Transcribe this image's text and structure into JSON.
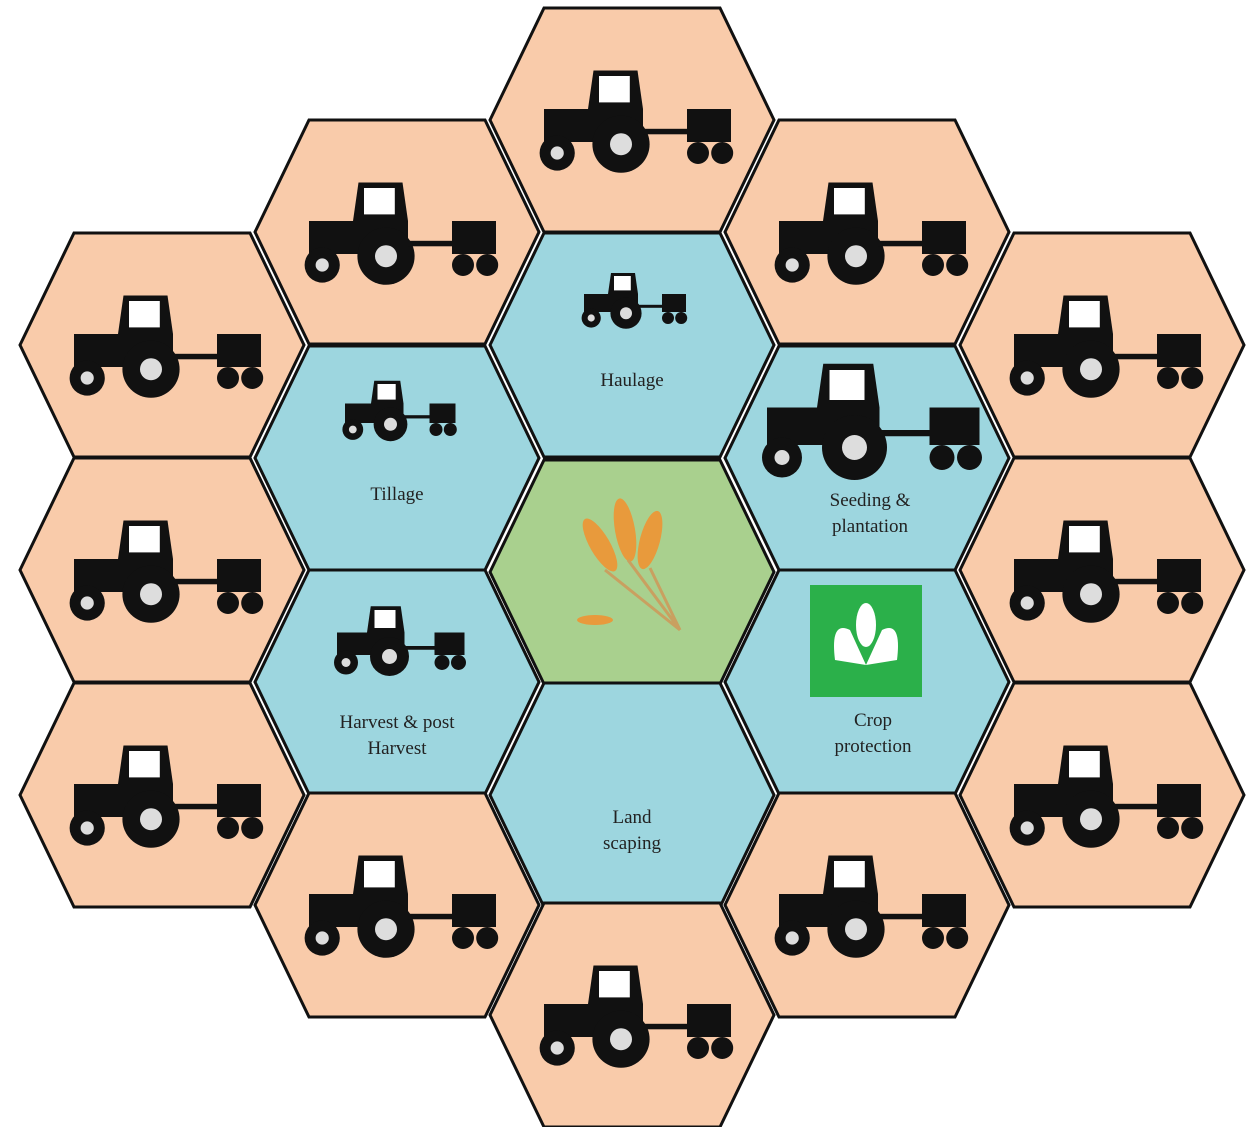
{
  "labels": [
    {
      "lines": [
        "Haulage"
      ]
    },
    {
      "lines": [
        "Tillage"
      ]
    },
    {
      "lines": [
        "Seeding &",
        "plantation"
      ]
    },
    {
      "lines": [
        "Harvest & post",
        "Harvest"
      ]
    },
    {
      "lines": [
        "Crop",
        "protection"
      ]
    },
    {
      "lines": [
        "Land",
        "scaping"
      ]
    }
  ]
}
